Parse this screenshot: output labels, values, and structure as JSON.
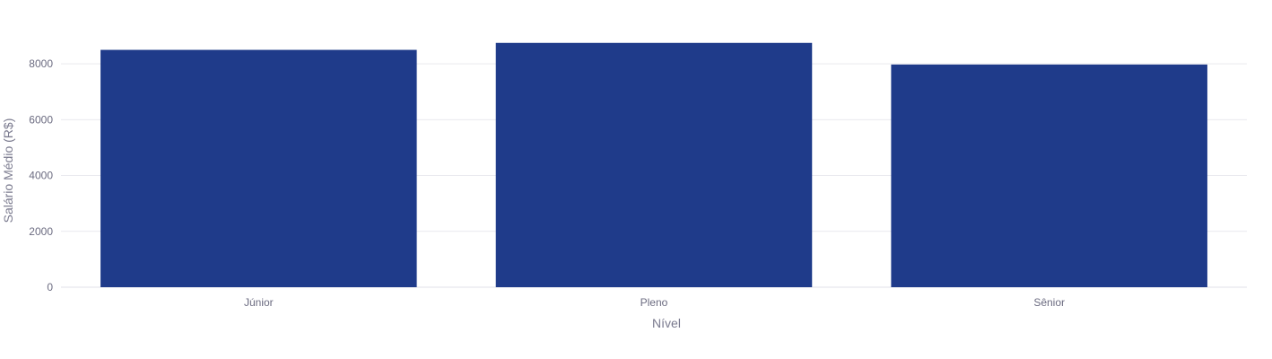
{
  "chart_data": {
    "type": "bar",
    "title": "",
    "xlabel": "Nível",
    "ylabel": "Salário Médio (R$)",
    "categories": [
      "Júnior",
      "Pleno",
      "Sênior"
    ],
    "values": [
      8500,
      8750,
      7975
    ],
    "ylim": [
      0,
      9000
    ],
    "yticks": [
      0,
      2000,
      4000,
      6000,
      8000
    ],
    "grid": true,
    "legend": "none",
    "bar_color": "#1f3b8a"
  }
}
